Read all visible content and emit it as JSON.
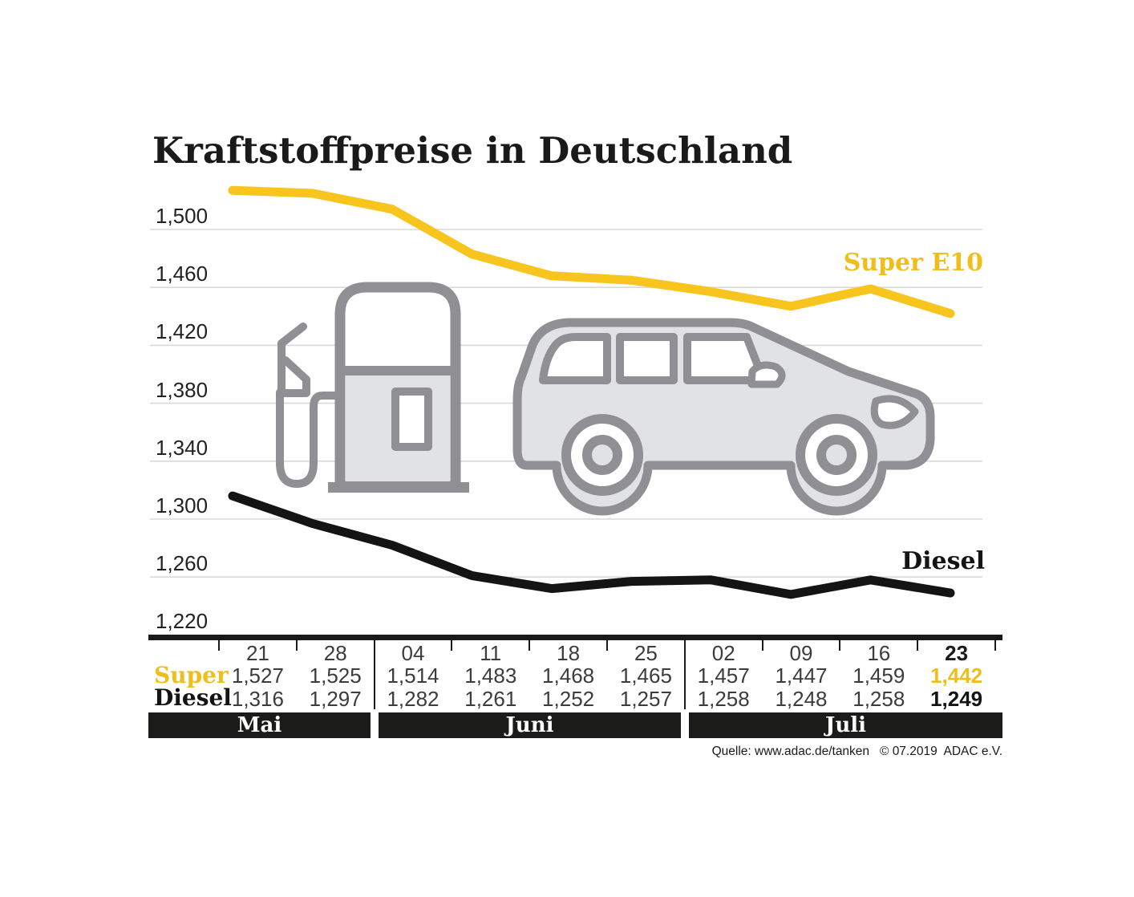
{
  "title": "Kraftstoffpreise in Deutschland",
  "labels": {
    "super_line": "Super E10",
    "diesel_line": "Diesel"
  },
  "table": {
    "row_labels": {
      "super": "Super",
      "diesel": "Diesel"
    },
    "dates": [
      "21",
      "28",
      "04",
      "11",
      "18",
      "25",
      "02",
      "09",
      "16",
      "23"
    ],
    "super": [
      "1,527",
      "1,525",
      "1,514",
      "1,483",
      "1,468",
      "1,465",
      "1,457",
      "1,447",
      "1,459",
      "1,442"
    ],
    "diesel": [
      "1,316",
      "1,297",
      "1,282",
      "1,261",
      "1,252",
      "1,257",
      "1,258",
      "1,248",
      "1,258",
      "1,249"
    ]
  },
  "months": [
    "Mai",
    "Juni",
    "Juli"
  ],
  "source": "Quelle: www.adac.de/tanken   © 07.2019  ADAC e.V.",
  "colors": {
    "yellow_line": "#f7c51d",
    "yellow_text": "#efbe1c",
    "black_line": "#141414",
    "grid": "#d9d9d9",
    "illustration_stroke": "#909094",
    "illustration_fill": "#e1e2e4",
    "bar_background": "#1b1b19",
    "table_number_gray": "#3c3c3c",
    "ink": "#1a1a1a"
  },
  "chart_data": {
    "type": "line",
    "title": "Kraftstoffpreise in Deutschland",
    "unit": "EUR per litre",
    "x_dates": [
      "21",
      "28",
      "04",
      "11",
      "18",
      "25",
      "02",
      "09",
      "16",
      "23"
    ],
    "x_months": [
      {
        "label": "Mai",
        "dates": [
          "21",
          "28"
        ]
      },
      {
        "label": "Juni",
        "dates": [
          "04",
          "11",
          "18",
          "25"
        ]
      },
      {
        "label": "Juli",
        "dates": [
          "02",
          "09",
          "16",
          "23"
        ]
      }
    ],
    "series": [
      {
        "name": "Super E10",
        "color": "#f7c51d",
        "values": [
          1.527,
          1.525,
          1.514,
          1.483,
          1.468,
          1.465,
          1.457,
          1.447,
          1.459,
          1.442
        ]
      },
      {
        "name": "Diesel",
        "color": "#141414",
        "values": [
          1.316,
          1.297,
          1.282,
          1.261,
          1.252,
          1.257,
          1.258,
          1.248,
          1.258,
          1.249
        ]
      }
    ],
    "ylim": [
      1.22,
      1.54
    ],
    "ytick_values": [
      1.5,
      1.46,
      1.42,
      1.38,
      1.34,
      1.3,
      1.26,
      1.22
    ],
    "ytick_labels": [
      "1,500",
      "1,460",
      "1,420",
      "1,380",
      "1,340",
      "1,300",
      "1,260",
      "1,220"
    ],
    "grid": true,
    "legend_position": "labels at right end of lines",
    "source": "Quelle: www.adac.de/tanken   © 07.2019  ADAC e.V."
  }
}
